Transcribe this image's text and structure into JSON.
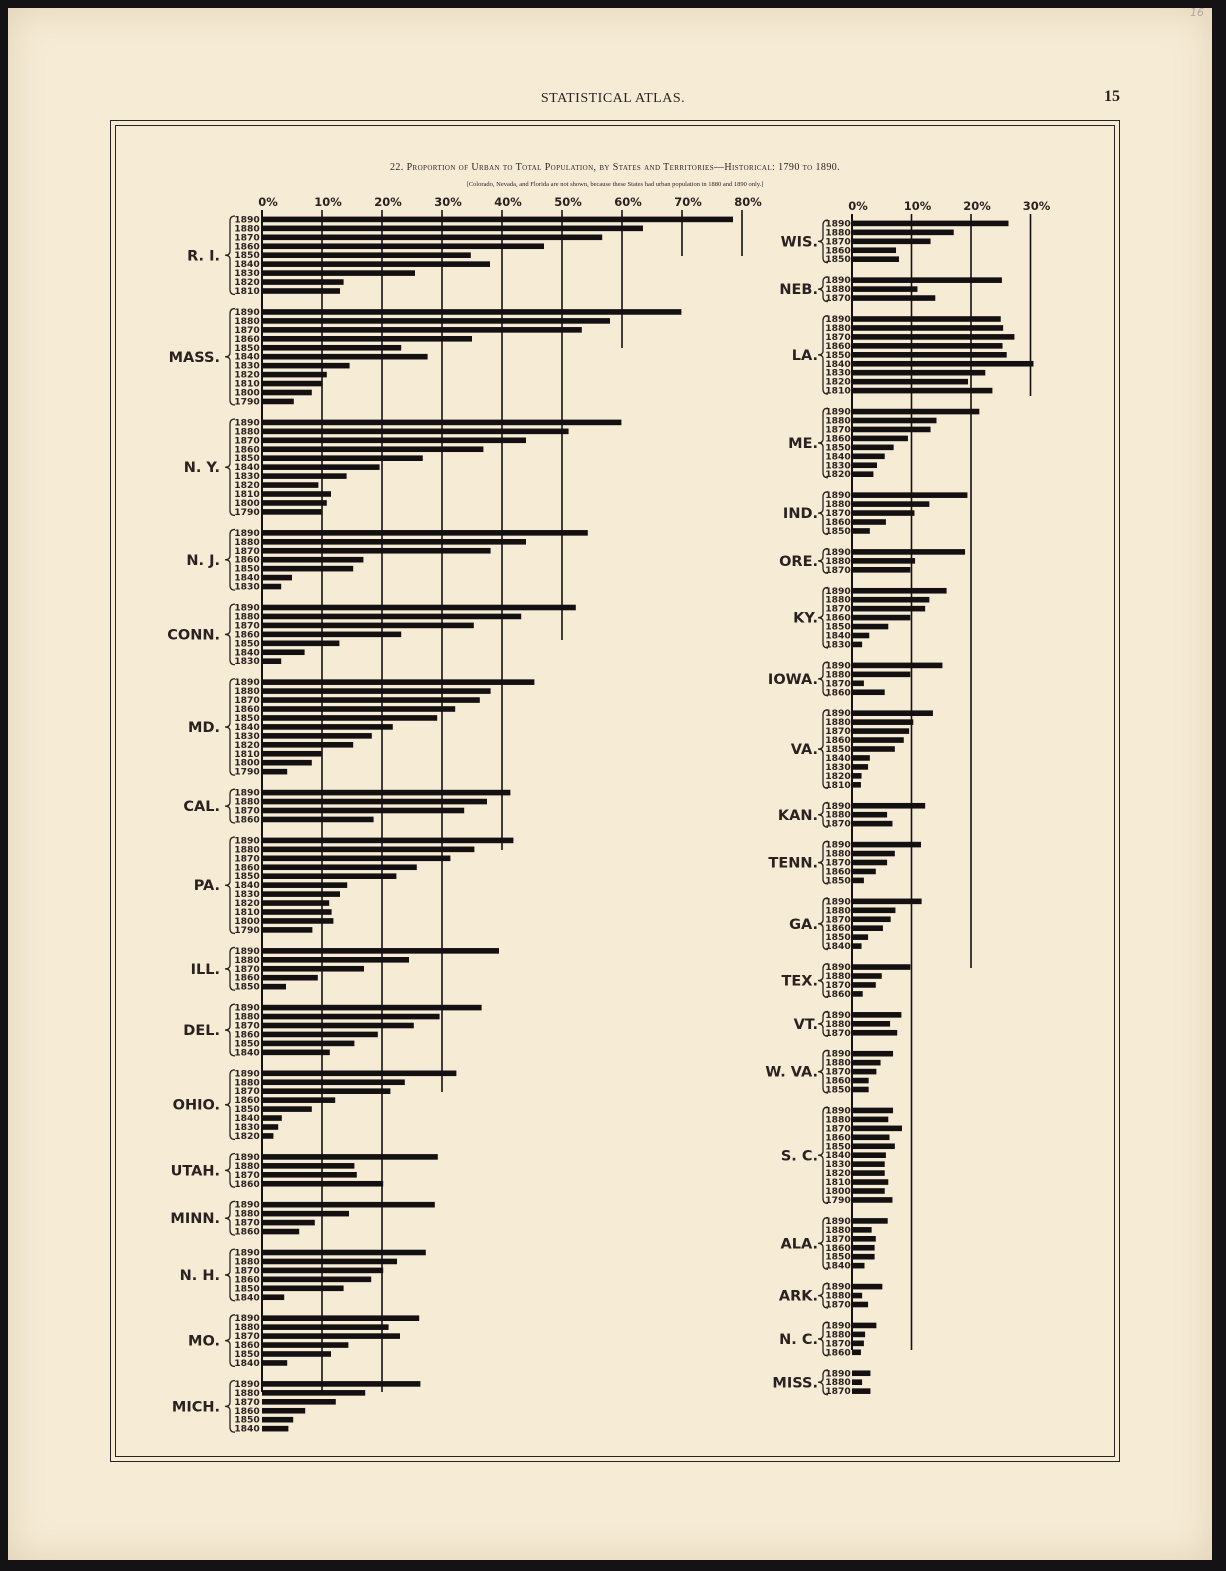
{
  "page": {
    "running_head": "STATISTICAL ATLAS.",
    "page_number": "15",
    "pencil_note": "16"
  },
  "chart_data": {
    "type": "bar",
    "orientation": "horizontal",
    "title": "22. Proportion of Urban to Total Population, by States and Territories—Historical: 1790 to 1890.",
    "note": "[Colorado, Nevada, and Florida are not shown, because these States had urban population in 1880 and 1890 only.]",
    "colors": {
      "bar": "#141012",
      "ink": "#2a2220",
      "paper": "#f6ecd6"
    },
    "panels": [
      {
        "id": "left",
        "ticks": [
          "0%",
          "10%",
          "20%",
          "30%",
          "40%",
          "50%",
          "60%",
          "70%",
          "80%"
        ],
        "xlim": [
          0,
          80
        ],
        "groups": [
          {
            "state": "R. I.",
            "years": [
              "1890",
              "1880",
              "1870",
              "1860",
              "1850",
              "1840",
              "1830",
              "1820",
              "1810"
            ],
            "values": [
              78.5,
              63.5,
              56.7,
              47.0,
              34.8,
              38.0,
              25.5,
              13.6,
              13.0
            ]
          },
          {
            "state": "MASS.",
            "years": [
              "1890",
              "1880",
              "1870",
              "1860",
              "1850",
              "1840",
              "1830",
              "1820",
              "1810",
              "1800",
              "1790"
            ],
            "values": [
              69.9,
              58.0,
              53.3,
              35.0,
              23.2,
              27.6,
              14.6,
              10.8,
              10.1,
              8.3,
              5.3
            ]
          },
          {
            "state": "N. Y.",
            "years": [
              "1890",
              "1880",
              "1870",
              "1860",
              "1850",
              "1840",
              "1830",
              "1820",
              "1810",
              "1800",
              "1790"
            ],
            "values": [
              59.9,
              51.1,
              44.0,
              36.9,
              26.8,
              19.6,
              14.1,
              9.4,
              11.5,
              10.8,
              9.9
            ]
          },
          {
            "state": "N. J.",
            "years": [
              "1890",
              "1880",
              "1870",
              "1860",
              "1850",
              "1840",
              "1830"
            ],
            "values": [
              54.3,
              44.0,
              38.1,
              16.9,
              15.2,
              5.0,
              3.2
            ]
          },
          {
            "state": "CONN.",
            "years": [
              "1890",
              "1880",
              "1870",
              "1860",
              "1850",
              "1840",
              "1830"
            ],
            "values": [
              52.3,
              43.2,
              35.3,
              23.2,
              12.9,
              7.1,
              3.2
            ]
          },
          {
            "state": "MD.",
            "years": [
              "1890",
              "1880",
              "1870",
              "1860",
              "1850",
              "1840",
              "1830",
              "1820",
              "1810",
              "1800",
              "1790"
            ],
            "values": [
              45.4,
              38.1,
              36.3,
              32.2,
              29.2,
              21.8,
              18.3,
              15.2,
              9.9,
              8.3,
              4.2
            ]
          },
          {
            "state": "CAL.",
            "years": [
              "1890",
              "1880",
              "1870",
              "1860"
            ],
            "values": [
              41.4,
              37.5,
              33.7,
              18.6
            ]
          },
          {
            "state": "PA.",
            "years": [
              "1890",
              "1880",
              "1870",
              "1860",
              "1850",
              "1840",
              "1830",
              "1820",
              "1810",
              "1800",
              "1790"
            ],
            "values": [
              41.9,
              35.4,
              31.4,
              25.8,
              22.4,
              14.2,
              13.0,
              11.2,
              11.6,
              11.9,
              8.4
            ]
          },
          {
            "state": "ILL.",
            "years": [
              "1890",
              "1880",
              "1870",
              "1860",
              "1850"
            ],
            "values": [
              39.5,
              24.5,
              17.0,
              9.3,
              4.0
            ]
          },
          {
            "state": "DEL.",
            "years": [
              "1890",
              "1880",
              "1870",
              "1860",
              "1850",
              "1840"
            ],
            "values": [
              36.6,
              29.6,
              25.3,
              19.3,
              15.4,
              11.3
            ]
          },
          {
            "state": "OHIO.",
            "years": [
              "1890",
              "1880",
              "1870",
              "1860",
              "1850",
              "1840",
              "1830",
              "1820"
            ],
            "values": [
              32.4,
              23.8,
              21.4,
              12.2,
              8.3,
              3.3,
              2.7,
              1.9
            ]
          },
          {
            "state": "UTAH.",
            "years": [
              "1890",
              "1880",
              "1870",
              "1860"
            ],
            "values": [
              29.3,
              15.4,
              15.8,
              20.2
            ]
          },
          {
            "state": "MINN.",
            "years": [
              "1890",
              "1880",
              "1870",
              "1860"
            ],
            "values": [
              28.8,
              14.5,
              8.8,
              6.2
            ]
          },
          {
            "state": "N. H.",
            "years": [
              "1890",
              "1880",
              "1870",
              "1860",
              "1850",
              "1840"
            ],
            "values": [
              27.3,
              22.5,
              20.2,
              18.2,
              13.6,
              3.7
            ]
          },
          {
            "state": "MO.",
            "years": [
              "1890",
              "1880",
              "1870",
              "1860",
              "1850",
              "1840"
            ],
            "values": [
              26.2,
              21.1,
              23.0,
              14.4,
              11.5,
              4.2
            ]
          },
          {
            "state": "MICH.",
            "years": [
              "1890",
              "1880",
              "1870",
              "1860",
              "1850",
              "1840"
            ],
            "values": [
              26.4,
              17.2,
              12.3,
              7.2,
              5.2,
              4.4
            ]
          }
        ]
      },
      {
        "id": "right",
        "ticks": [
          "0%",
          "10%",
          "20%",
          "30%"
        ],
        "xlim": [
          0,
          30
        ],
        "groups": [
          {
            "state": "WIS.",
            "years": [
              "1890",
              "1880",
              "1870",
              "1860",
              "1850"
            ],
            "values": [
              26.3,
              17.1,
              13.2,
              7.4,
              7.9
            ]
          },
          {
            "state": "NEB.",
            "years": [
              "1890",
              "1880",
              "1870"
            ],
            "values": [
              25.2,
              11.0,
              14.0
            ]
          },
          {
            "state": "LA.",
            "years": [
              "1890",
              "1880",
              "1870",
              "1860",
              "1850",
              "1840",
              "1830",
              "1820",
              "1810"
            ],
            "values": [
              25.0,
              25.4,
              27.3,
              25.3,
              26.0,
              30.5,
              22.4,
              19.5,
              23.6
            ]
          },
          {
            "state": "ME.",
            "years": [
              "1890",
              "1880",
              "1870",
              "1860",
              "1850",
              "1840",
              "1830",
              "1820"
            ],
            "values": [
              21.4,
              14.2,
              13.2,
              9.4,
              7.0,
              5.5,
              4.2,
              3.6
            ]
          },
          {
            "state": "IND.",
            "years": [
              "1890",
              "1880",
              "1870",
              "1860",
              "1850"
            ],
            "values": [
              19.4,
              13.0,
              10.5,
              5.7,
              3.0
            ]
          },
          {
            "state": "ORE.",
            "years": [
              "1890",
              "1880",
              "1870"
            ],
            "values": [
              19.0,
              10.6,
              9.8
            ]
          },
          {
            "state": "KY.",
            "years": [
              "1890",
              "1880",
              "1870",
              "1860",
              "1850",
              "1840",
              "1830"
            ],
            "values": [
              15.9,
              13.0,
              12.3,
              9.8,
              6.1,
              2.9,
              1.7
            ]
          },
          {
            "state": "IOWA.",
            "years": [
              "1890",
              "1880",
              "1870",
              "1860"
            ],
            "values": [
              15.2,
              9.8,
              2.0,
              5.5
            ]
          },
          {
            "state": "VA.",
            "years": [
              "1890",
              "1880",
              "1870",
              "1860",
              "1850",
              "1840",
              "1830",
              "1820",
              "1810"
            ],
            "values": [
              13.6,
              10.3,
              9.6,
              8.7,
              7.2,
              3.0,
              2.7,
              1.6,
              1.5
            ]
          },
          {
            "state": "KAN.",
            "years": [
              "1890",
              "1880",
              "1870"
            ],
            "values": [
              12.3,
              5.9,
              6.8
            ]
          },
          {
            "state": "TENN.",
            "years": [
              "1890",
              "1880",
              "1870",
              "1860",
              "1850"
            ],
            "values": [
              11.6,
              7.2,
              5.9,
              4.0,
              2.0
            ]
          },
          {
            "state": "GA.",
            "years": [
              "1890",
              "1880",
              "1870",
              "1860",
              "1850",
              "1840"
            ],
            "values": [
              11.7,
              7.3,
              6.5,
              5.2,
              2.7,
              1.6
            ]
          },
          {
            "state": "TEX.",
            "years": [
              "1890",
              "1880",
              "1870",
              "1860"
            ],
            "values": [
              9.8,
              5.0,
              4.0,
              1.8
            ]
          },
          {
            "state": "VT.",
            "years": [
              "1890",
              "1880",
              "1870"
            ],
            "values": [
              8.3,
              6.4,
              7.6
            ]
          },
          {
            "state": "W. VA.",
            "years": [
              "1890",
              "1880",
              "1870",
              "1860",
              "1850"
            ],
            "values": [
              6.9,
              4.8,
              4.1,
              2.8,
              2.8
            ]
          },
          {
            "state": "S. C.",
            "years": [
              "1890",
              "1880",
              "1870",
              "1860",
              "1850",
              "1840",
              "1830",
              "1820",
              "1810",
              "1800",
              "1790"
            ],
            "values": [
              6.9,
              6.1,
              8.4,
              6.3,
              7.2,
              5.7,
              5.5,
              5.5,
              6.1,
              5.5,
              6.8
            ]
          },
          {
            "state": "ALA.",
            "years": [
              "1890",
              "1880",
              "1870",
              "1860",
              "1850",
              "1840"
            ],
            "values": [
              6.0,
              3.3,
              4.0,
              3.8,
              3.8,
              2.1
            ]
          },
          {
            "state": "ARK.",
            "years": [
              "1890",
              "1880",
              "1870"
            ],
            "values": [
              5.1,
              1.7,
              2.7
            ]
          },
          {
            "state": "N. C.",
            "years": [
              "1890",
              "1880",
              "1870",
              "1860"
            ],
            "values": [
              4.1,
              2.2,
              2.0,
              1.5
            ]
          },
          {
            "state": "MISS.",
            "years": [
              "1890",
              "1880",
              "1870"
            ],
            "values": [
              3.1,
              1.7,
              3.1
            ]
          }
        ]
      }
    ]
  }
}
